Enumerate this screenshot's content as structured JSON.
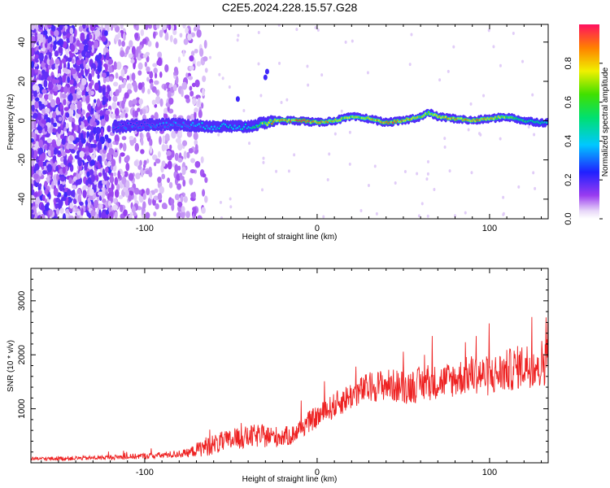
{
  "figure_title": "C2E5.2024.228.15.57.G28",
  "colors": {
    "snr_line": "#ee2222",
    "axes": "#000000",
    "background": "#ffffff"
  },
  "chart_data": [
    {
      "type": "heatmap",
      "title": "C2E5.2024.228.15.57.G28",
      "xlabel": "Height of straight line (km)",
      "ylabel": "Frequency (Hz)",
      "xlim": [
        -166,
        134
      ],
      "ylim": [
        -50,
        49
      ],
      "xticks": [
        -100,
        0,
        100
      ],
      "yticks": [
        -40,
        -20,
        0,
        20,
        40
      ],
      "colorbar": {
        "label": "Normalized spectral amplitude",
        "range": [
          0,
          1
        ],
        "ticks": [
          "0.0",
          "0.2",
          "0.4",
          "0.6",
          "0.8"
        ],
        "colormap": "rainbow (white-violet-blue-cyan-green-yellow-red)"
      },
      "signal_track": {
        "x": [
          -115,
          -100,
          -80,
          -60,
          -40,
          -25,
          -10,
          0,
          10,
          20,
          30,
          40,
          50,
          60,
          65,
          70,
          80,
          90,
          100,
          110,
          120,
          130
        ],
        "freq": [
          -3,
          -2,
          -2,
          -3,
          -3,
          0,
          0,
          -1,
          0,
          2,
          1,
          -1,
          0,
          2,
          4,
          2,
          1,
          0,
          1,
          2,
          0,
          -1
        ],
        "amplitude": [
          0.3,
          0.3,
          0.35,
          0.4,
          0.45,
          0.9,
          0.95,
          0.9,
          0.8,
          0.75,
          0.8,
          0.9,
          0.9,
          0.8,
          0.75,
          0.85,
          0.9,
          0.9,
          0.85,
          0.7,
          0.6,
          0.5
        ]
      },
      "noise_region_x": [
        -166,
        -72
      ]
    },
    {
      "type": "line",
      "xlabel": "Height of straight line (km)",
      "ylabel": "SNR (10 * v/v)",
      "xlim": [
        -166,
        134
      ],
      "ylim": [
        0,
        3600
      ],
      "xticks": [
        -100,
        0,
        100
      ],
      "yticks": [
        1000,
        2000,
        3000
      ],
      "series": [
        {
          "x": [
            -166,
            -150,
            -130,
            -110,
            -90,
            -75,
            -65,
            -55,
            -45,
            -35,
            -25,
            -15,
            -5,
            5,
            12,
            20,
            30,
            40,
            50,
            60,
            70,
            80,
            90,
            100,
            110,
            120,
            130,
            134
          ],
          "y": [
            70,
            80,
            90,
            110,
            140,
            180,
            300,
            380,
            450,
            500,
            480,
            500,
            750,
            950,
            1100,
            1250,
            1400,
            1450,
            1400,
            1450,
            1500,
            1550,
            1650,
            1600,
            1700,
            1800,
            1850,
            1900
          ],
          "spread": [
            30,
            40,
            40,
            50,
            60,
            80,
            180,
            200,
            200,
            220,
            200,
            180,
            200,
            220,
            250,
            260,
            280,
            300,
            320,
            330,
            320,
            340,
            360,
            380,
            400,
            420,
            450,
            450
          ]
        }
      ]
    }
  ]
}
